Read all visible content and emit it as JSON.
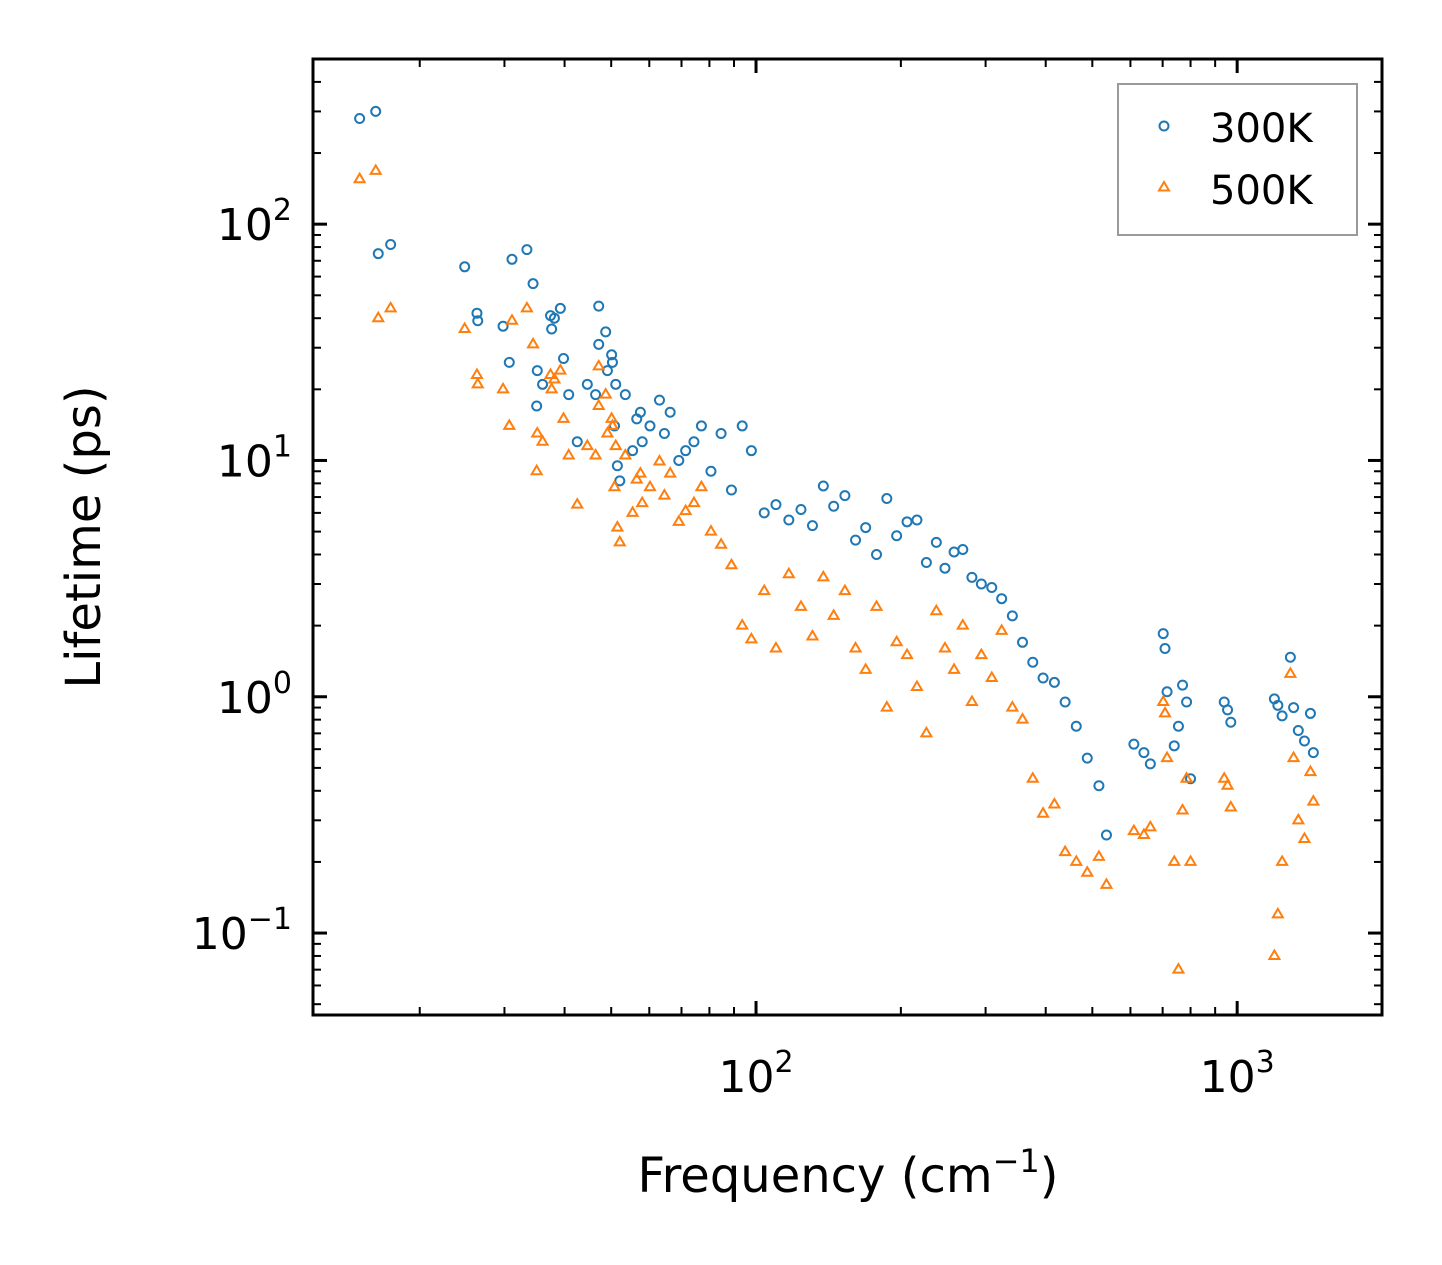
{
  "chart_data": {
    "type": "scatter",
    "title": "",
    "xlabel": {
      "base": "Frequency (cm",
      "sup": "−1",
      "tail": ")"
    },
    "ylabel": "Lifetime (ps)",
    "xscale": "log",
    "yscale": "log",
    "xlim": [
      12,
      2000
    ],
    "ylim": [
      0.045,
      500
    ],
    "x_ticks": [
      {
        "value": 100,
        "base": "10",
        "exp": "2"
      },
      {
        "value": 1000,
        "base": "10",
        "exp": "3"
      }
    ],
    "y_ticks": [
      {
        "value": 0.1,
        "base": "10",
        "exp": "−1"
      },
      {
        "value": 1,
        "base": "10",
        "exp": "0"
      },
      {
        "value": 10,
        "base": "10",
        "exp": "1"
      },
      {
        "value": 100,
        "base": "10",
        "exp": "2"
      }
    ],
    "legend_position": "top-right",
    "series": [
      {
        "name": "300K",
        "marker": "circle",
        "color": "#1f77b4",
        "points": [
          [
            15.0,
            280
          ],
          [
            16.2,
            300
          ],
          [
            16.4,
            75
          ],
          [
            17.4,
            82
          ],
          [
            24.8,
            66
          ],
          [
            26.3,
            42
          ],
          [
            26.4,
            39
          ],
          [
            29.8,
            37
          ],
          [
            30.7,
            26
          ],
          [
            31.1,
            71
          ],
          [
            33.4,
            78
          ],
          [
            34.4,
            56
          ],
          [
            35.0,
            17
          ],
          [
            35.1,
            24
          ],
          [
            36.0,
            21
          ],
          [
            37.4,
            41
          ],
          [
            37.6,
            36
          ],
          [
            38.1,
            40
          ],
          [
            39.2,
            44
          ],
          [
            39.8,
            27
          ],
          [
            40.8,
            19
          ],
          [
            42.5,
            12
          ],
          [
            44.6,
            21
          ],
          [
            46.4,
            19
          ],
          [
            47.1,
            45
          ],
          [
            47.1,
            31
          ],
          [
            48.7,
            35
          ],
          [
            49.1,
            24
          ],
          [
            50.1,
            28
          ],
          [
            50.3,
            26
          ],
          [
            50.8,
            14
          ],
          [
            51.1,
            21
          ],
          [
            51.5,
            9.5
          ],
          [
            52.1,
            8.2
          ],
          [
            53.5,
            19
          ],
          [
            55.4,
            11
          ],
          [
            56.5,
            15
          ],
          [
            57.5,
            16
          ],
          [
            58.0,
            12
          ],
          [
            60.2,
            14
          ],
          [
            63.0,
            18
          ],
          [
            64.5,
            13
          ],
          [
            66.3,
            16
          ],
          [
            69.1,
            10
          ],
          [
            71.4,
            11
          ],
          [
            74.3,
            12
          ],
          [
            77.0,
            14
          ],
          [
            80.6,
            9.0
          ],
          [
            84.6,
            13
          ],
          [
            88.9,
            7.5
          ],
          [
            93.6,
            14
          ],
          [
            97.8,
            11
          ],
          [
            104,
            6.0
          ],
          [
            110,
            6.5
          ],
          [
            117,
            5.6
          ],
          [
            124,
            6.2
          ],
          [
            131,
            5.3
          ],
          [
            138,
            7.8
          ],
          [
            145,
            6.4
          ],
          [
            153,
            7.1
          ],
          [
            161,
            4.6
          ],
          [
            169,
            5.2
          ],
          [
            178,
            4.0
          ],
          [
            187,
            6.9
          ],
          [
            196,
            4.8
          ],
          [
            206,
            5.5
          ],
          [
            216,
            5.6
          ],
          [
            226,
            3.7
          ],
          [
            237,
            4.5
          ],
          [
            247,
            3.5
          ],
          [
            258,
            4.1
          ],
          [
            269,
            4.2
          ],
          [
            281,
            3.2
          ],
          [
            294,
            3.0
          ],
          [
            309,
            2.9
          ],
          [
            324,
            2.6
          ],
          [
            341,
            2.2
          ],
          [
            358,
            1.7
          ],
          [
            376,
            1.4
          ],
          [
            395,
            1.2
          ],
          [
            417,
            1.15
          ],
          [
            439,
            0.95
          ],
          [
            463,
            0.75
          ],
          [
            488,
            0.55
          ],
          [
            516,
            0.42
          ],
          [
            535,
            0.26
          ],
          [
            610,
            0.63
          ],
          [
            640,
            0.58
          ],
          [
            660,
            0.52
          ],
          [
            702,
            1.85
          ],
          [
            708,
            1.6
          ],
          [
            715,
            1.05
          ],
          [
            740,
            0.62
          ],
          [
            755,
            0.75
          ],
          [
            770,
            1.12
          ],
          [
            785,
            0.95
          ],
          [
            800,
            0.45
          ],
          [
            940,
            0.95
          ],
          [
            955,
            0.88
          ],
          [
            970,
            0.78
          ],
          [
            1195,
            0.98
          ],
          [
            1215,
            0.92
          ],
          [
            1240,
            0.83
          ],
          [
            1290,
            1.47
          ],
          [
            1310,
            0.9
          ],
          [
            1340,
            0.72
          ],
          [
            1380,
            0.65
          ],
          [
            1420,
            0.85
          ],
          [
            1440,
            0.58
          ]
        ]
      },
      {
        "name": "500K",
        "marker": "triangle",
        "color": "#ff7f0e",
        "points": [
          [
            15.0,
            155
          ],
          [
            16.2,
            168
          ],
          [
            16.4,
            40
          ],
          [
            17.4,
            44
          ],
          [
            24.8,
            36
          ],
          [
            26.3,
            23
          ],
          [
            26.4,
            21
          ],
          [
            29.8,
            20
          ],
          [
            30.7,
            14
          ],
          [
            31.1,
            39
          ],
          [
            33.4,
            44
          ],
          [
            34.4,
            31
          ],
          [
            35.0,
            9.0
          ],
          [
            35.1,
            13
          ],
          [
            36.0,
            12
          ],
          [
            37.4,
            23
          ],
          [
            37.6,
            20
          ],
          [
            38.1,
            22
          ],
          [
            39.2,
            24
          ],
          [
            39.8,
            15
          ],
          [
            40.8,
            10.5
          ],
          [
            42.5,
            6.5
          ],
          [
            44.6,
            11.5
          ],
          [
            46.4,
            10.5
          ],
          [
            47.1,
            25
          ],
          [
            47.1,
            17
          ],
          [
            48.7,
            19
          ],
          [
            49.1,
            13
          ],
          [
            50.1,
            15
          ],
          [
            50.3,
            14
          ],
          [
            50.8,
            7.7
          ],
          [
            51.1,
            11.5
          ],
          [
            51.5,
            5.2
          ],
          [
            52.1,
            4.5
          ],
          [
            53.5,
            10.5
          ],
          [
            55.4,
            6.0
          ],
          [
            56.5,
            8.3
          ],
          [
            57.5,
            8.8
          ],
          [
            58.0,
            6.6
          ],
          [
            60.2,
            7.7
          ],
          [
            63.0,
            9.9
          ],
          [
            64.5,
            7.1
          ],
          [
            66.3,
            8.8
          ],
          [
            69.1,
            5.5
          ],
          [
            71.4,
            6.1
          ],
          [
            74.3,
            6.6
          ],
          [
            77.0,
            7.7
          ],
          [
            80.6,
            5.0
          ],
          [
            84.6,
            4.4
          ],
          [
            88.9,
            3.6
          ],
          [
            93.6,
            2.0
          ],
          [
            97.8,
            1.75
          ],
          [
            104,
            2.8
          ],
          [
            110,
            1.6
          ],
          [
            117,
            3.3
          ],
          [
            124,
            2.4
          ],
          [
            131,
            1.8
          ],
          [
            138,
            3.2
          ],
          [
            145,
            2.2
          ],
          [
            153,
            2.8
          ],
          [
            161,
            1.6
          ],
          [
            169,
            1.3
          ],
          [
            178,
            2.4
          ],
          [
            187,
            0.9
          ],
          [
            196,
            1.7
          ],
          [
            206,
            1.5
          ],
          [
            216,
            1.1
          ],
          [
            226,
            0.7
          ],
          [
            237,
            2.3
          ],
          [
            247,
            1.6
          ],
          [
            258,
            1.3
          ],
          [
            269,
            2.0
          ],
          [
            281,
            0.95
          ],
          [
            294,
            1.5
          ],
          [
            309,
            1.2
          ],
          [
            324,
            1.9
          ],
          [
            341,
            0.9
          ],
          [
            358,
            0.8
          ],
          [
            376,
            0.45
          ],
          [
            395,
            0.32
          ],
          [
            417,
            0.35
          ],
          [
            439,
            0.22
          ],
          [
            463,
            0.2
          ],
          [
            488,
            0.18
          ],
          [
            516,
            0.21
          ],
          [
            535,
            0.16
          ],
          [
            610,
            0.27
          ],
          [
            640,
            0.26
          ],
          [
            660,
            0.28
          ],
          [
            702,
            0.95
          ],
          [
            708,
            0.85
          ],
          [
            715,
            0.55
          ],
          [
            740,
            0.2
          ],
          [
            755,
            0.07
          ],
          [
            770,
            0.33
          ],
          [
            785,
            0.45
          ],
          [
            800,
            0.2
          ],
          [
            940,
            0.45
          ],
          [
            955,
            0.42
          ],
          [
            970,
            0.34
          ],
          [
            1195,
            0.08
          ],
          [
            1215,
            0.12
          ],
          [
            1240,
            0.2
          ],
          [
            1290,
            1.25
          ],
          [
            1310,
            0.55
          ],
          [
            1340,
            0.3
          ],
          [
            1380,
            0.25
          ],
          [
            1420,
            0.48
          ],
          [
            1440,
            0.36
          ]
        ]
      }
    ]
  }
}
